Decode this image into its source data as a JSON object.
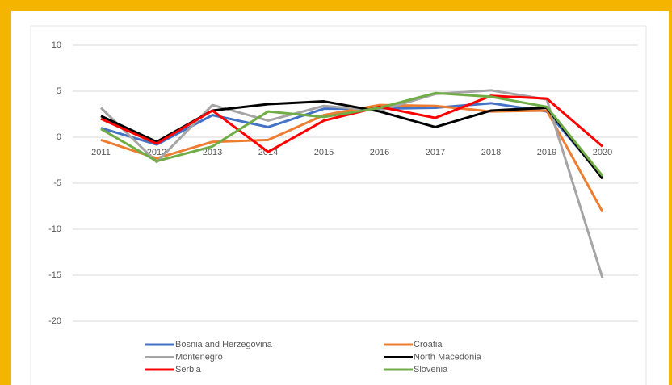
{
  "chart_data": {
    "type": "line",
    "categories": [
      "2011",
      "2012",
      "2013",
      "2014",
      "2015",
      "2016",
      "2017",
      "2018",
      "2019",
      "2020"
    ],
    "series": [
      {
        "name": "Bosnia and Herzegovina",
        "color": "#4472c4",
        "values": [
          1.0,
          -0.8,
          2.4,
          1.1,
          3.1,
          3.1,
          3.2,
          3.7,
          2.8,
          -4.3
        ]
      },
      {
        "name": "Croatia",
        "color": "#ed7d31",
        "values": [
          -0.3,
          -2.3,
          -0.5,
          -0.3,
          2.4,
          3.5,
          3.4,
          2.8,
          2.9,
          -8.1
        ]
      },
      {
        "name": "Montenegro",
        "color": "#a5a5a5",
        "values": [
          3.2,
          -2.7,
          3.5,
          1.8,
          3.4,
          2.9,
          4.7,
          5.1,
          4.1,
          -15.3
        ]
      },
      {
        "name": "North Macedonia",
        "color": "#000000",
        "values": [
          2.3,
          -0.5,
          2.9,
          3.6,
          3.9,
          2.8,
          1.1,
          2.9,
          3.2,
          -4.5
        ]
      },
      {
        "name": "Serbia",
        "color": "#ff0000",
        "values": [
          2.0,
          -0.7,
          2.9,
          -1.6,
          1.8,
          3.3,
          2.1,
          4.5,
          4.2,
          -1.0
        ]
      },
      {
        "name": "Slovenia",
        "color": "#70ad47",
        "values": [
          0.9,
          -2.6,
          -1.0,
          2.8,
          2.2,
          3.2,
          4.8,
          4.4,
          3.3,
          -4.2
        ]
      }
    ],
    "ylim": [
      -20,
      10
    ],
    "yticks": [
      -20,
      -15,
      -10,
      -5,
      0,
      5,
      10
    ],
    "grid": true
  }
}
